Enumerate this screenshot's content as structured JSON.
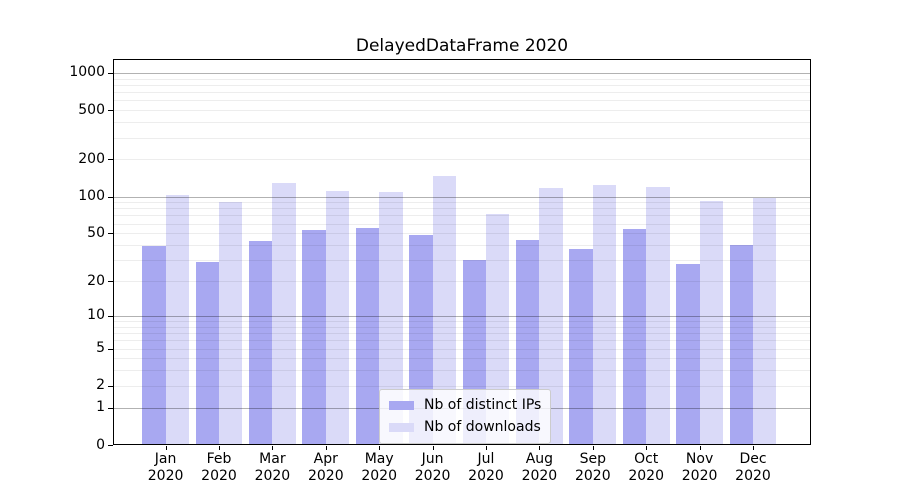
{
  "chart_data": {
    "type": "bar",
    "title": "DelayedDataFrame 2020",
    "categories": [
      "Jan",
      "Feb",
      "Mar",
      "Apr",
      "May",
      "Jun",
      "Jul",
      "Aug",
      "Sep",
      "Oct",
      "Nov",
      "Dec"
    ],
    "category_year": "2020",
    "series": [
      {
        "name": "Nb of distinct IPs",
        "color": "#a8a8f1",
        "values": [
          39,
          29,
          43,
          53,
          55,
          48,
          30,
          44,
          37,
          54,
          28,
          40
        ]
      },
      {
        "name": "Nb of downloads",
        "color": "#dadaf8",
        "values": [
          103,
          91,
          128,
          110,
          109,
          147,
          72,
          118,
          124,
          120,
          92,
          97
        ]
      }
    ],
    "yscale": "log1p",
    "yticks": [
      0,
      1,
      2,
      5,
      10,
      20,
      50,
      100,
      200,
      500,
      1000
    ],
    "ylim": [
      0,
      1300
    ],
    "xlabel": "",
    "ylabel": "",
    "grid": true,
    "legend_position": "lower center"
  }
}
